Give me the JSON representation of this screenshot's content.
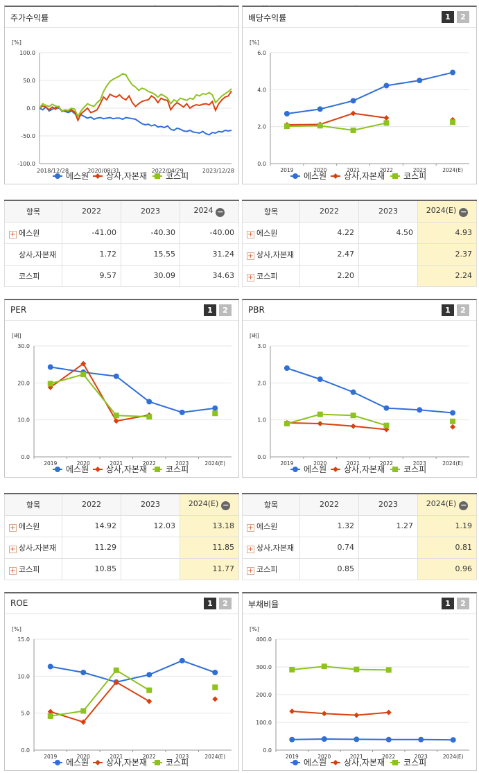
{
  "pager": {
    "p1": "1",
    "p2": "2"
  },
  "legend": {
    "s1": "에스원",
    "s2": "상사,자본재",
    "s3": "코스피"
  },
  "colors": {
    "s1": "#2f6fd6",
    "s2": "#d9400f",
    "s3": "#8dc21f"
  },
  "panels": {
    "stock": {
      "title": "주가수익률"
    },
    "dividend": {
      "title": "배당수익률"
    },
    "per": {
      "title": "PER"
    },
    "pbr": {
      "title": "PBR"
    },
    "roe": {
      "title": "ROE"
    },
    "debt": {
      "title": "부채비율"
    }
  },
  "chart_data": [
    {
      "id": "stock",
      "type": "line",
      "title": "주가수익률",
      "unit": "[%]",
      "ylim": [
        -100,
        100
      ],
      "yticks": [
        "100.0",
        "50.0",
        "0.0",
        "-50.0",
        "-100.0"
      ],
      "xticks": [
        "2018/12/28",
        "2020/08/31",
        "2022/04/29",
        "2023/12/28"
      ],
      "xlim_index": [
        0,
        60
      ],
      "series": [
        {
          "name": "에스원",
          "values": [
            0,
            -3,
            2,
            -5,
            -2,
            1,
            0,
            -4,
            -6,
            -8,
            -5,
            -10,
            -14,
            -12,
            -15,
            -18,
            -16,
            -20,
            -18,
            -17,
            -19,
            -18,
            -17,
            -19,
            -18,
            -18,
            -20,
            -17,
            -18,
            -19,
            -20,
            -24,
            -28,
            -30,
            -29,
            -32,
            -30,
            -34,
            -33,
            -35,
            -32,
            -38,
            -40,
            -36,
            -38,
            -41,
            -42,
            -40,
            -43,
            -44,
            -45,
            -42,
            -46,
            -48,
            -44,
            -45,
            -42,
            -43,
            -40,
            -41,
            -40
          ]
        },
        {
          "name": "상사,자본재",
          "values": [
            0,
            4,
            2,
            -3,
            2,
            -2,
            3,
            -6,
            -4,
            -5,
            -3,
            -7,
            -22,
            -10,
            -5,
            0,
            -8,
            -6,
            -3,
            8,
            20,
            15,
            25,
            22,
            20,
            24,
            18,
            15,
            22,
            10,
            3,
            8,
            12,
            14,
            15,
            22,
            18,
            10,
            18,
            15,
            14,
            -3,
            5,
            10,
            6,
            2,
            8,
            0,
            4,
            6,
            5,
            7,
            8,
            6,
            12,
            -4,
            8,
            15,
            20,
            22,
            31
          ]
        },
        {
          "name": "코스피",
          "values": [
            0,
            8,
            5,
            3,
            7,
            4,
            2,
            -5,
            -3,
            -4,
            0,
            -2,
            -15,
            -5,
            2,
            8,
            5,
            3,
            10,
            15,
            30,
            40,
            48,
            52,
            55,
            58,
            62,
            60,
            50,
            42,
            38,
            32,
            36,
            34,
            30,
            28,
            25,
            20,
            25,
            22,
            18,
            8,
            15,
            12,
            18,
            16,
            14,
            18,
            16,
            24,
            22,
            26,
            25,
            28,
            24,
            10,
            16,
            22,
            26,
            30,
            35
          ]
        }
      ]
    },
    {
      "id": "dividend",
      "type": "line",
      "title": "배당수익률",
      "unit": "[%]",
      "ylim": [
        0,
        6
      ],
      "yticks": [
        "6.0",
        "4.0",
        "2.0",
        "0.0"
      ],
      "categories": [
        "2019",
        "2020",
        "2021",
        "2022",
        "2023",
        "2024(E)"
      ],
      "series": [
        {
          "name": "에스원",
          "values": [
            2.7,
            2.95,
            3.4,
            4.22,
            4.5,
            4.93
          ]
        },
        {
          "name": "상사,자본재",
          "values": [
            2.1,
            2.12,
            2.72,
            2.47,
            null,
            2.37
          ]
        },
        {
          "name": "코스피",
          "values": [
            2.02,
            2.05,
            1.8,
            2.2,
            null,
            2.24
          ]
        }
      ]
    },
    {
      "id": "per",
      "type": "line",
      "title": "PER",
      "unit": "[배]",
      "ylim": [
        0,
        30
      ],
      "yticks": [
        "30.0",
        "20.0",
        "10.0",
        "0.0"
      ],
      "categories": [
        "2019",
        "2020",
        "2021",
        "2022",
        "2023",
        "2024(E)"
      ],
      "series": [
        {
          "name": "에스원",
          "values": [
            24.3,
            22.9,
            21.8,
            14.92,
            12.03,
            13.18
          ]
        },
        {
          "name": "상사,자본재",
          "values": [
            18.8,
            25.2,
            9.7,
            11.29,
            null,
            11.85
          ]
        },
        {
          "name": "코스피",
          "values": [
            19.8,
            22.3,
            11.2,
            10.85,
            null,
            11.77
          ]
        }
      ]
    },
    {
      "id": "pbr",
      "type": "line",
      "title": "PBR",
      "unit": "[배]",
      "ylim": [
        0,
        3
      ],
      "yticks": [
        "3.0",
        "2.0",
        "1.0",
        "0.0"
      ],
      "categories": [
        "2019",
        "2020",
        "2021",
        "2022",
        "2023",
        "2024(E)"
      ],
      "series": [
        {
          "name": "에스원",
          "values": [
            2.4,
            2.1,
            1.75,
            1.32,
            1.27,
            1.19
          ]
        },
        {
          "name": "상사,자본재",
          "values": [
            0.92,
            0.9,
            0.83,
            0.74,
            null,
            0.81
          ]
        },
        {
          "name": "코스피",
          "values": [
            0.9,
            1.15,
            1.12,
            0.85,
            null,
            0.96
          ]
        }
      ]
    },
    {
      "id": "roe",
      "type": "line",
      "title": "ROE",
      "unit": "[%]",
      "ylim": [
        0,
        15
      ],
      "yticks": [
        "15.0",
        "10.0",
        "5.0",
        "0.0"
      ],
      "categories": [
        "2019",
        "2020",
        "2021",
        "2022",
        "2023",
        "2024(E)"
      ],
      "series": [
        {
          "name": "에스원",
          "values": [
            11.3,
            10.5,
            9.2,
            10.2,
            12.1,
            10.5
          ]
        },
        {
          "name": "상사,자본재",
          "values": [
            5.2,
            3.8,
            9.2,
            6.6,
            null,
            6.9
          ]
        },
        {
          "name": "코스피",
          "values": [
            4.6,
            5.3,
            10.8,
            8.1,
            null,
            8.5
          ]
        }
      ]
    },
    {
      "id": "debt",
      "type": "line",
      "title": "부채비율",
      "unit": "[%]",
      "ylim": [
        0,
        400
      ],
      "yticks": [
        "400.0",
        "300.0",
        "200.0",
        "100.0",
        "0.0"
      ],
      "categories": [
        "2019",
        "2020",
        "2021",
        "2022",
        "2023",
        "2024(E)"
      ],
      "series": [
        {
          "name": "에스원",
          "values": [
            38,
            40,
            39,
            38,
            38,
            37
          ]
        },
        {
          "name": "상사,자본재",
          "values": [
            140,
            132,
            126,
            136,
            null,
            null
          ]
        },
        {
          "name": "코스피",
          "values": [
            290,
            302,
            291,
            289,
            null,
            null
          ]
        }
      ]
    }
  ],
  "tables": {
    "stock": {
      "headers": [
        "항목",
        "2022",
        "2023",
        "2024"
      ],
      "rows": [
        {
          "name": "에스원",
          "v": [
            "-41.00",
            "-40.30",
            "-40.00"
          ],
          "plus": true
        },
        {
          "name": "상사,자본재",
          "v": [
            "1.72",
            "15.55",
            "31.24"
          ],
          "plus": false
        },
        {
          "name": "코스피",
          "v": [
            "9.57",
            "30.09",
            "34.63"
          ],
          "plus": false
        }
      ]
    },
    "dividend": {
      "headers": [
        "항목",
        "2022",
        "2023",
        "2024(E)"
      ],
      "rows": [
        {
          "name": "에스원",
          "v": [
            "4.22",
            "4.50",
            "4.93"
          ],
          "plus": true
        },
        {
          "name": "상사,자본재",
          "v": [
            "2.47",
            "",
            "2.37"
          ],
          "plus": true
        },
        {
          "name": "코스피",
          "v": [
            "2.20",
            "",
            "2.24"
          ],
          "plus": true
        }
      ]
    },
    "per": {
      "headers": [
        "항목",
        "2022",
        "2023",
        "2024(E)"
      ],
      "rows": [
        {
          "name": "에스원",
          "v": [
            "14.92",
            "12.03",
            "13.18"
          ],
          "plus": true
        },
        {
          "name": "상사,자본재",
          "v": [
            "11.29",
            "",
            "11.85"
          ],
          "plus": true
        },
        {
          "name": "코스피",
          "v": [
            "10.85",
            "",
            "11.77"
          ],
          "plus": true
        }
      ]
    },
    "pbr": {
      "headers": [
        "항목",
        "2022",
        "2023",
        "2024(E)"
      ],
      "rows": [
        {
          "name": "에스원",
          "v": [
            "1.32",
            "1.27",
            "1.19"
          ],
          "plus": true
        },
        {
          "name": "상사,자본재",
          "v": [
            "0.74",
            "",
            "0.81"
          ],
          "plus": true
        },
        {
          "name": "코스피",
          "v": [
            "0.85",
            "",
            "0.96"
          ],
          "plus": true
        }
      ]
    }
  }
}
